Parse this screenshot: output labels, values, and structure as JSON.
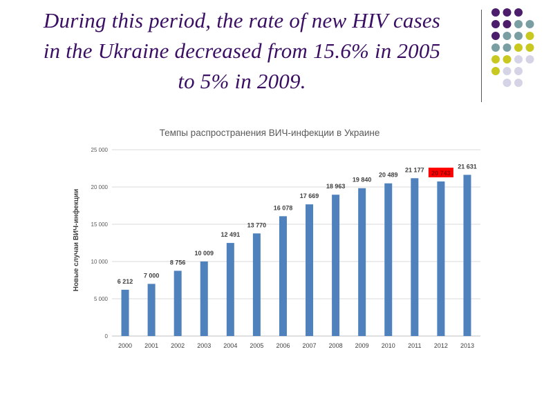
{
  "slide": {
    "headline_lines": [
      "During this period, the rate of new HIV cases",
      "in the Ukraine decreased from 15.6% in 2005",
      "to 5% in 2009."
    ]
  },
  "decoration": {
    "dot_colors": [
      "#4b1d6b",
      "#7a9fa3",
      "#c8c820",
      "#d4d4e6"
    ]
  },
  "chart_data": {
    "type": "bar",
    "title": "Темпы распространения ВИЧ-инфекции в Украине",
    "xlabel": "",
    "ylabel": "Новые случаи ВИЧ-инфекции",
    "ylim": [
      0,
      25000
    ],
    "yticks": [
      0,
      5000,
      10000,
      15000,
      20000,
      25000
    ],
    "ytick_labels": [
      "0",
      "5 000",
      "10 000",
      "15 000",
      "20 000",
      "25 000"
    ],
    "grid": true,
    "categories": [
      "2000",
      "2001",
      "2002",
      "2003",
      "2004",
      "2005",
      "2006",
      "2007",
      "2008",
      "2009",
      "2010",
      "2011",
      "2012",
      "2013"
    ],
    "values": [
      6212,
      7000,
      8756,
      10009,
      12491,
      13770,
      16078,
      17669,
      18963,
      19840,
      20489,
      21177,
      20743,
      21631
    ],
    "value_labels": [
      "6 212",
      "7 000",
      "8 756",
      "10 009",
      "12 491",
      "13 770",
      "16 078",
      "17 669",
      "18 963",
      "19 840",
      "20 489",
      "21 177",
      "20 743",
      "21 631"
    ],
    "highlighted_category": "2012",
    "bar_color": "#4f81bd",
    "highlight_color": "#ff0000"
  }
}
